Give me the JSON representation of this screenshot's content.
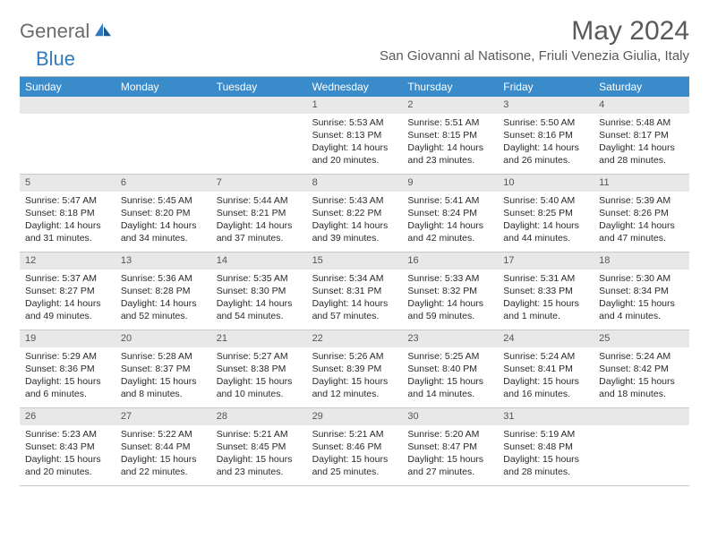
{
  "logo": {
    "part1": "General",
    "part2": "Blue"
  },
  "title": "May 2024",
  "location": "San Giovanni al Natisone, Friuli Venezia Giulia, Italy",
  "colors": {
    "header_bg": "#3a8bc9",
    "daynum_bg": "#e8e8e8",
    "border": "#c9c9c9",
    "text": "#2a2a2a"
  },
  "weekdays": [
    "Sunday",
    "Monday",
    "Tuesday",
    "Wednesday",
    "Thursday",
    "Friday",
    "Saturday"
  ],
  "weeks": [
    [
      null,
      null,
      null,
      {
        "n": "1",
        "sunrise": "5:53 AM",
        "sunset": "8:13 PM",
        "dl1": "Daylight: 14 hours",
        "dl2": "and 20 minutes."
      },
      {
        "n": "2",
        "sunrise": "5:51 AM",
        "sunset": "8:15 PM",
        "dl1": "Daylight: 14 hours",
        "dl2": "and 23 minutes."
      },
      {
        "n": "3",
        "sunrise": "5:50 AM",
        "sunset": "8:16 PM",
        "dl1": "Daylight: 14 hours",
        "dl2": "and 26 minutes."
      },
      {
        "n": "4",
        "sunrise": "5:48 AM",
        "sunset": "8:17 PM",
        "dl1": "Daylight: 14 hours",
        "dl2": "and 28 minutes."
      }
    ],
    [
      {
        "n": "5",
        "sunrise": "5:47 AM",
        "sunset": "8:18 PM",
        "dl1": "Daylight: 14 hours",
        "dl2": "and 31 minutes."
      },
      {
        "n": "6",
        "sunrise": "5:45 AM",
        "sunset": "8:20 PM",
        "dl1": "Daylight: 14 hours",
        "dl2": "and 34 minutes."
      },
      {
        "n": "7",
        "sunrise": "5:44 AM",
        "sunset": "8:21 PM",
        "dl1": "Daylight: 14 hours",
        "dl2": "and 37 minutes."
      },
      {
        "n": "8",
        "sunrise": "5:43 AM",
        "sunset": "8:22 PM",
        "dl1": "Daylight: 14 hours",
        "dl2": "and 39 minutes."
      },
      {
        "n": "9",
        "sunrise": "5:41 AM",
        "sunset": "8:24 PM",
        "dl1": "Daylight: 14 hours",
        "dl2": "and 42 minutes."
      },
      {
        "n": "10",
        "sunrise": "5:40 AM",
        "sunset": "8:25 PM",
        "dl1": "Daylight: 14 hours",
        "dl2": "and 44 minutes."
      },
      {
        "n": "11",
        "sunrise": "5:39 AM",
        "sunset": "8:26 PM",
        "dl1": "Daylight: 14 hours",
        "dl2": "and 47 minutes."
      }
    ],
    [
      {
        "n": "12",
        "sunrise": "5:37 AM",
        "sunset": "8:27 PM",
        "dl1": "Daylight: 14 hours",
        "dl2": "and 49 minutes."
      },
      {
        "n": "13",
        "sunrise": "5:36 AM",
        "sunset": "8:28 PM",
        "dl1": "Daylight: 14 hours",
        "dl2": "and 52 minutes."
      },
      {
        "n": "14",
        "sunrise": "5:35 AM",
        "sunset": "8:30 PM",
        "dl1": "Daylight: 14 hours",
        "dl2": "and 54 minutes."
      },
      {
        "n": "15",
        "sunrise": "5:34 AM",
        "sunset": "8:31 PM",
        "dl1": "Daylight: 14 hours",
        "dl2": "and 57 minutes."
      },
      {
        "n": "16",
        "sunrise": "5:33 AM",
        "sunset": "8:32 PM",
        "dl1": "Daylight: 14 hours",
        "dl2": "and 59 minutes."
      },
      {
        "n": "17",
        "sunrise": "5:31 AM",
        "sunset": "8:33 PM",
        "dl1": "Daylight: 15 hours",
        "dl2": "and 1 minute."
      },
      {
        "n": "18",
        "sunrise": "5:30 AM",
        "sunset": "8:34 PM",
        "dl1": "Daylight: 15 hours",
        "dl2": "and 4 minutes."
      }
    ],
    [
      {
        "n": "19",
        "sunrise": "5:29 AM",
        "sunset": "8:36 PM",
        "dl1": "Daylight: 15 hours",
        "dl2": "and 6 minutes."
      },
      {
        "n": "20",
        "sunrise": "5:28 AM",
        "sunset": "8:37 PM",
        "dl1": "Daylight: 15 hours",
        "dl2": "and 8 minutes."
      },
      {
        "n": "21",
        "sunrise": "5:27 AM",
        "sunset": "8:38 PM",
        "dl1": "Daylight: 15 hours",
        "dl2": "and 10 minutes."
      },
      {
        "n": "22",
        "sunrise": "5:26 AM",
        "sunset": "8:39 PM",
        "dl1": "Daylight: 15 hours",
        "dl2": "and 12 minutes."
      },
      {
        "n": "23",
        "sunrise": "5:25 AM",
        "sunset": "8:40 PM",
        "dl1": "Daylight: 15 hours",
        "dl2": "and 14 minutes."
      },
      {
        "n": "24",
        "sunrise": "5:24 AM",
        "sunset": "8:41 PM",
        "dl1": "Daylight: 15 hours",
        "dl2": "and 16 minutes."
      },
      {
        "n": "25",
        "sunrise": "5:24 AM",
        "sunset": "8:42 PM",
        "dl1": "Daylight: 15 hours",
        "dl2": "and 18 minutes."
      }
    ],
    [
      {
        "n": "26",
        "sunrise": "5:23 AM",
        "sunset": "8:43 PM",
        "dl1": "Daylight: 15 hours",
        "dl2": "and 20 minutes."
      },
      {
        "n": "27",
        "sunrise": "5:22 AM",
        "sunset": "8:44 PM",
        "dl1": "Daylight: 15 hours",
        "dl2": "and 22 minutes."
      },
      {
        "n": "28",
        "sunrise": "5:21 AM",
        "sunset": "8:45 PM",
        "dl1": "Daylight: 15 hours",
        "dl2": "and 23 minutes."
      },
      {
        "n": "29",
        "sunrise": "5:21 AM",
        "sunset": "8:46 PM",
        "dl1": "Daylight: 15 hours",
        "dl2": "and 25 minutes."
      },
      {
        "n": "30",
        "sunrise": "5:20 AM",
        "sunset": "8:47 PM",
        "dl1": "Daylight: 15 hours",
        "dl2": "and 27 minutes."
      },
      {
        "n": "31",
        "sunrise": "5:19 AM",
        "sunset": "8:48 PM",
        "dl1": "Daylight: 15 hours",
        "dl2": "and 28 minutes."
      },
      null
    ]
  ],
  "labels": {
    "sunrise": "Sunrise: ",
    "sunset": "Sunset: "
  }
}
